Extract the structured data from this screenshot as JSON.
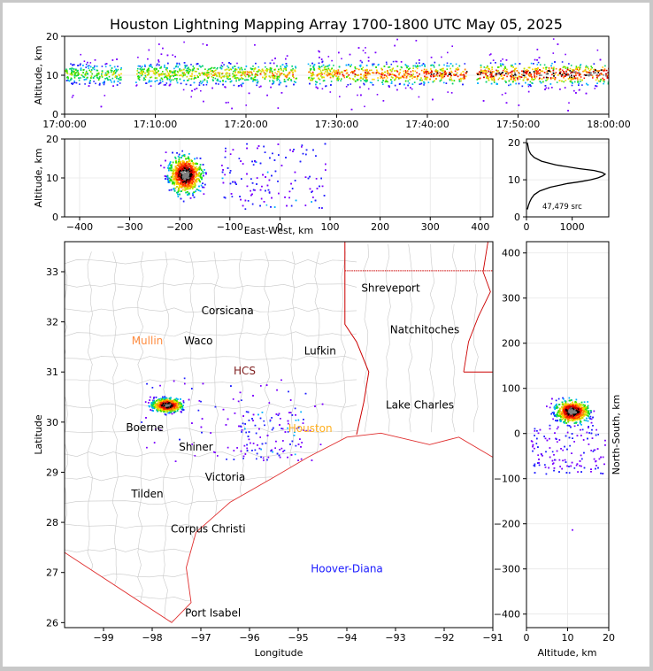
{
  "title": "Houston Lightning Mapping Array 1700-1800 UTC May 05, 2025",
  "colors": {
    "frame_bg": "#c8c8c8",
    "coast": "#e03030",
    "county": "#c8c8c8",
    "state": "#cc0000"
  },
  "chart_data": [
    {
      "id": "time-altitude",
      "type": "scatter",
      "ylabel": "Altitude, km",
      "ylim": [
        0,
        20
      ],
      "yticks": [
        0,
        10,
        20
      ],
      "xlim_labels": [
        "17:00:00",
        "18:00:00"
      ],
      "xticks": [
        "17:00:00",
        "17:10:00",
        "17:20:00",
        "17:30:00",
        "17:40:00",
        "17:50:00",
        "18:00:00"
      ],
      "gaps_minutes": [
        [
          6.2,
          7.8
        ],
        [
          25.6,
          26.8
        ],
        [
          44.3,
          45.4
        ]
      ],
      "density_band": {
        "center_km": 10.5,
        "spread_km": 2.5
      }
    },
    {
      "id": "ew-altitude",
      "type": "scatter",
      "xlabel": "East-West, km",
      "ylabel": "Altitude, km",
      "xlim": [
        -430,
        425
      ],
      "ylim": [
        0,
        20
      ],
      "xticks": [
        -400,
        -300,
        -200,
        -100,
        0,
        100,
        200,
        300,
        400
      ],
      "yticks": [
        0,
        10,
        20
      ],
      "core": {
        "x": -190,
        "y": 11
      }
    },
    {
      "id": "altitude-histogram",
      "type": "line",
      "xlim": [
        0,
        1800
      ],
      "ylim": [
        0,
        21
      ],
      "xticks": [
        0,
        1000
      ],
      "yticks": [
        0,
        10,
        20
      ],
      "annotation": "47,479 src",
      "profile": [
        {
          "alt": 2,
          "count": 20
        },
        {
          "alt": 3,
          "count": 40
        },
        {
          "alt": 4,
          "count": 70
        },
        {
          "alt": 5,
          "count": 110
        },
        {
          "alt": 6,
          "count": 170
        },
        {
          "alt": 7,
          "count": 290
        },
        {
          "alt": 8,
          "count": 520
        },
        {
          "alt": 9,
          "count": 900
        },
        {
          "alt": 9.5,
          "count": 1180
        },
        {
          "alt": 10,
          "count": 1400
        },
        {
          "alt": 10.5,
          "count": 1560
        },
        {
          "alt": 11,
          "count": 1660
        },
        {
          "alt": 11.5,
          "count": 1720
        },
        {
          "alt": 12,
          "count": 1650
        },
        {
          "alt": 12.5,
          "count": 1480
        },
        {
          "alt": 13,
          "count": 1150
        },
        {
          "alt": 14,
          "count": 640
        },
        {
          "alt": 15,
          "count": 330
        },
        {
          "alt": 16,
          "count": 170
        },
        {
          "alt": 17,
          "count": 90
        },
        {
          "alt": 18,
          "count": 50
        },
        {
          "alt": 19,
          "count": 35
        },
        {
          "alt": 20,
          "count": 20
        }
      ]
    },
    {
      "id": "plan-view",
      "type": "scatter",
      "xlabel": "Longitude",
      "ylabel": "Latitude",
      "xlim": [
        -99.8,
        -91
      ],
      "ylim": [
        25.9,
        33.6
      ],
      "xticks": [
        -99,
        -98,
        -97,
        -96,
        -95,
        -94,
        -93,
        -92,
        -91
      ],
      "yticks": [
        26,
        27,
        28,
        29,
        30,
        31,
        32,
        33
      ],
      "core": {
        "lon": -97.7,
        "lat": 30.35
      },
      "cities": [
        {
          "name": "Shreveport",
          "lon": -93.1,
          "lat": 32.6,
          "color": "#000000"
        },
        {
          "name": "Corsicana",
          "lon": -96.45,
          "lat": 32.15,
          "color": "#000000"
        },
        {
          "name": "Natchitoches",
          "lon": -92.4,
          "lat": 31.77,
          "color": "#000000"
        },
        {
          "name": "Mullin",
          "lon": -98.1,
          "lat": 31.55,
          "color": "#ff8c40"
        },
        {
          "name": "Waco",
          "lon": -97.05,
          "lat": 31.55,
          "color": "#000000"
        },
        {
          "name": "Lufkin",
          "lon": -94.55,
          "lat": 31.35,
          "color": "#000000"
        },
        {
          "name": "HCS",
          "lon": -96.1,
          "lat": 30.95,
          "color": "#802020"
        },
        {
          "name": "Lake Charles",
          "lon": -92.5,
          "lat": 30.27,
          "color": "#000000"
        },
        {
          "name": "Houston",
          "lon": -94.75,
          "lat": 29.8,
          "color": "#ffb020"
        },
        {
          "name": "Boerne",
          "lon": -98.15,
          "lat": 29.82,
          "color": "#000000"
        },
        {
          "name": "Shiner",
          "lon": -97.1,
          "lat": 29.43,
          "color": "#000000"
        },
        {
          "name": "Victoria",
          "lon": -96.5,
          "lat": 28.83,
          "color": "#000000"
        },
        {
          "name": "Tilden",
          "lon": -98.1,
          "lat": 28.5,
          "color": "#000000"
        },
        {
          "name": "Corpus Christi",
          "lon": -96.85,
          "lat": 27.8,
          "color": "#000000"
        },
        {
          "name": "Hoover-Diana",
          "lon": -94.0,
          "lat": 27.0,
          "color": "#1a1aff"
        },
        {
          "name": "Port Isabel",
          "lon": -96.75,
          "lat": 26.12,
          "color": "#000000"
        }
      ]
    },
    {
      "id": "altitude-northsouth",
      "type": "scatter",
      "xlabel": "Altitude, km",
      "ylabel": "North-South, km",
      "xlim": [
        0,
        20
      ],
      "ylim": [
        -430,
        425
      ],
      "xticks": [
        0,
        10,
        20
      ],
      "yticks": [
        -400,
        -300,
        -200,
        -100,
        0,
        100,
        200,
        300,
        400
      ],
      "core": {
        "alt": 11,
        "ns": 50
      }
    }
  ]
}
